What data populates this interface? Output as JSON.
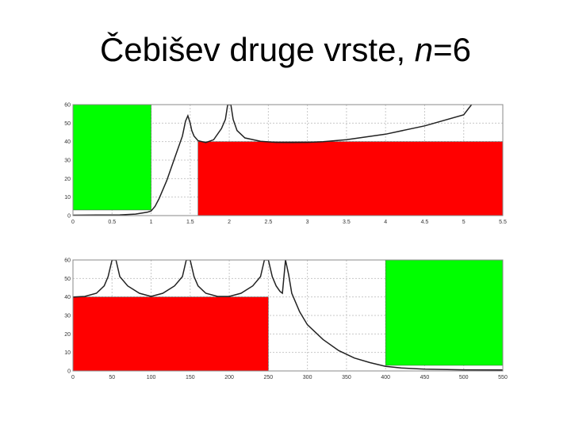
{
  "title": {
    "prefix": "Čebišev druge vrste, ",
    "var": "n",
    "suffix": "=6"
  },
  "colors": {
    "pass": "#00ff00",
    "stop": "#ff0000",
    "curve": "#222222",
    "baseline": "#1a1a8c"
  },
  "chart_data": [
    {
      "type": "line",
      "title": "",
      "xlabel": "",
      "ylabel": "",
      "xlim": [
        0,
        5.5
      ],
      "ylim": [
        0,
        60
      ],
      "xticks": [
        0,
        0.5,
        1,
        1.5,
        2,
        2.5,
        3,
        3.5,
        4,
        4.5,
        5,
        5.5
      ],
      "xtick_labels": [
        "0",
        "0.5",
        "1",
        "1.5",
        "2",
        "2.5",
        "3",
        "3.5",
        "4",
        "4.5",
        "5",
        "5.5"
      ],
      "yticks": [
        0,
        10,
        20,
        30,
        40,
        50,
        60
      ],
      "grid": true,
      "regions": [
        {
          "kind": "pass",
          "x": [
            0,
            1
          ],
          "y": [
            3,
            60
          ]
        },
        {
          "kind": "stop",
          "x": [
            1.6,
            5.5
          ],
          "y": [
            0,
            40
          ]
        }
      ],
      "series": [
        {
          "x": [
            0,
            0.3,
            0.6,
            0.8,
            0.95,
            1.0,
            1.05,
            1.1,
            1.2,
            1.3,
            1.4,
            1.44,
            1.47,
            1.5,
            1.52,
            1.55,
            1.6,
            1.7,
            1.8,
            1.9,
            1.95,
            1.98,
            2.02,
            2.05,
            2.1,
            2.2,
            2.4,
            2.6,
            2.8,
            3.0,
            3.2,
            3.5,
            4.0,
            4.5,
            5.0,
            5.1
          ],
          "y": [
            0.2,
            0.3,
            0.4,
            0.8,
            1.8,
            2.5,
            5,
            9,
            19,
            31,
            43,
            51,
            54,
            50,
            46,
            43,
            40.5,
            39.5,
            41,
            47,
            52,
            60,
            60,
            52,
            46,
            42,
            40.2,
            39.6,
            39.5,
            39.6,
            40,
            41,
            44,
            48.5,
            54.5,
            60
          ]
        }
      ]
    },
    {
      "type": "line",
      "title": "",
      "xlabel": "",
      "ylabel": "",
      "xlim": [
        0,
        550
      ],
      "ylim": [
        0,
        60
      ],
      "xticks": [
        0,
        50,
        100,
        150,
        200,
        250,
        300,
        350,
        400,
        450,
        500,
        550
      ],
      "xtick_labels": [
        "0",
        "50",
        "100",
        "150",
        "200",
        "250",
        "300",
        "350",
        "400",
        "450",
        "500",
        "550"
      ],
      "yticks": [
        0,
        10,
        20,
        30,
        40,
        50,
        60
      ],
      "grid": true,
      "regions": [
        {
          "kind": "stop",
          "x": [
            0,
            250
          ],
          "y": [
            0,
            40
          ]
        },
        {
          "kind": "pass",
          "x": [
            400,
            550
          ],
          "y": [
            3,
            60
          ]
        }
      ],
      "series": [
        {
          "x": [
            0,
            15,
            30,
            40,
            45,
            50,
            55,
            60,
            70,
            85,
            100,
            115,
            130,
            140,
            145,
            150,
            155,
            160,
            170,
            185,
            200,
            215,
            230,
            240,
            245,
            250,
            255,
            260,
            265,
            268,
            272,
            276,
            280,
            290,
            300,
            320,
            340,
            360,
            380,
            400,
            420,
            450,
            500,
            550
          ],
          "y": [
            40,
            40.3,
            42,
            46,
            51,
            60,
            60,
            51,
            46,
            42,
            40.3,
            42,
            46,
            51,
            60,
            60,
            51,
            46,
            42,
            40.3,
            40.3,
            42,
            46,
            51,
            60,
            60,
            51,
            46,
            43,
            42,
            60,
            52,
            42,
            32,
            25,
            17,
            11,
            7,
            4.5,
            2.5,
            1.6,
            1,
            0.6,
            0.5
          ]
        }
      ]
    }
  ]
}
